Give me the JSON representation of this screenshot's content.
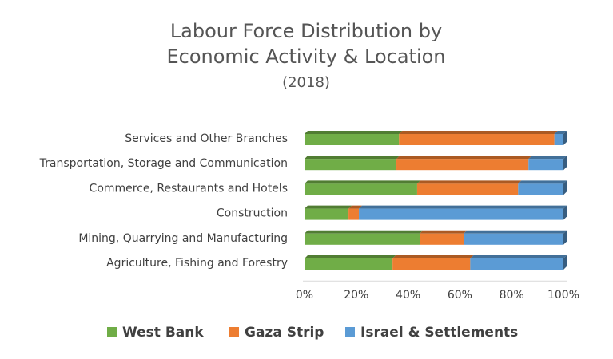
{
  "chart_data": {
    "type": "bar",
    "orientation": "horizontal",
    "stacked": true,
    "percent_stacked": true,
    "title_lines": [
      "Labour Force Distribution by",
      "Economic Activity & Location"
    ],
    "subtitle": "(2018)",
    "categories": [
      "Services and Other Branches",
      "Transportation, Storage and Communication",
      "Commerce, Restaurants and Hotels",
      "Construction",
      "Mining, Quarrying and Manufacturing",
      "Agriculture, Fishing and Forestry"
    ],
    "series": [
      {
        "name": "West Bank",
        "color": "#70ad47",
        "values": [
          36.5,
          35.5,
          43.5,
          17,
          44.5,
          34
        ]
      },
      {
        "name": "Gaza Strip",
        "color": "#ed7d31",
        "values": [
          60,
          51,
          39,
          4,
          17,
          30
        ]
      },
      {
        "name": "Israel & Settlements",
        "color": "#5b9bd5",
        "values": [
          3.5,
          13.5,
          17.5,
          79,
          38.5,
          36
        ]
      }
    ],
    "x_ticks": [
      "0%",
      "20%",
      "40%",
      "60%",
      "80%",
      "100%"
    ],
    "xlim": [
      0,
      100
    ],
    "grid": false,
    "legend_position": "bottom"
  }
}
